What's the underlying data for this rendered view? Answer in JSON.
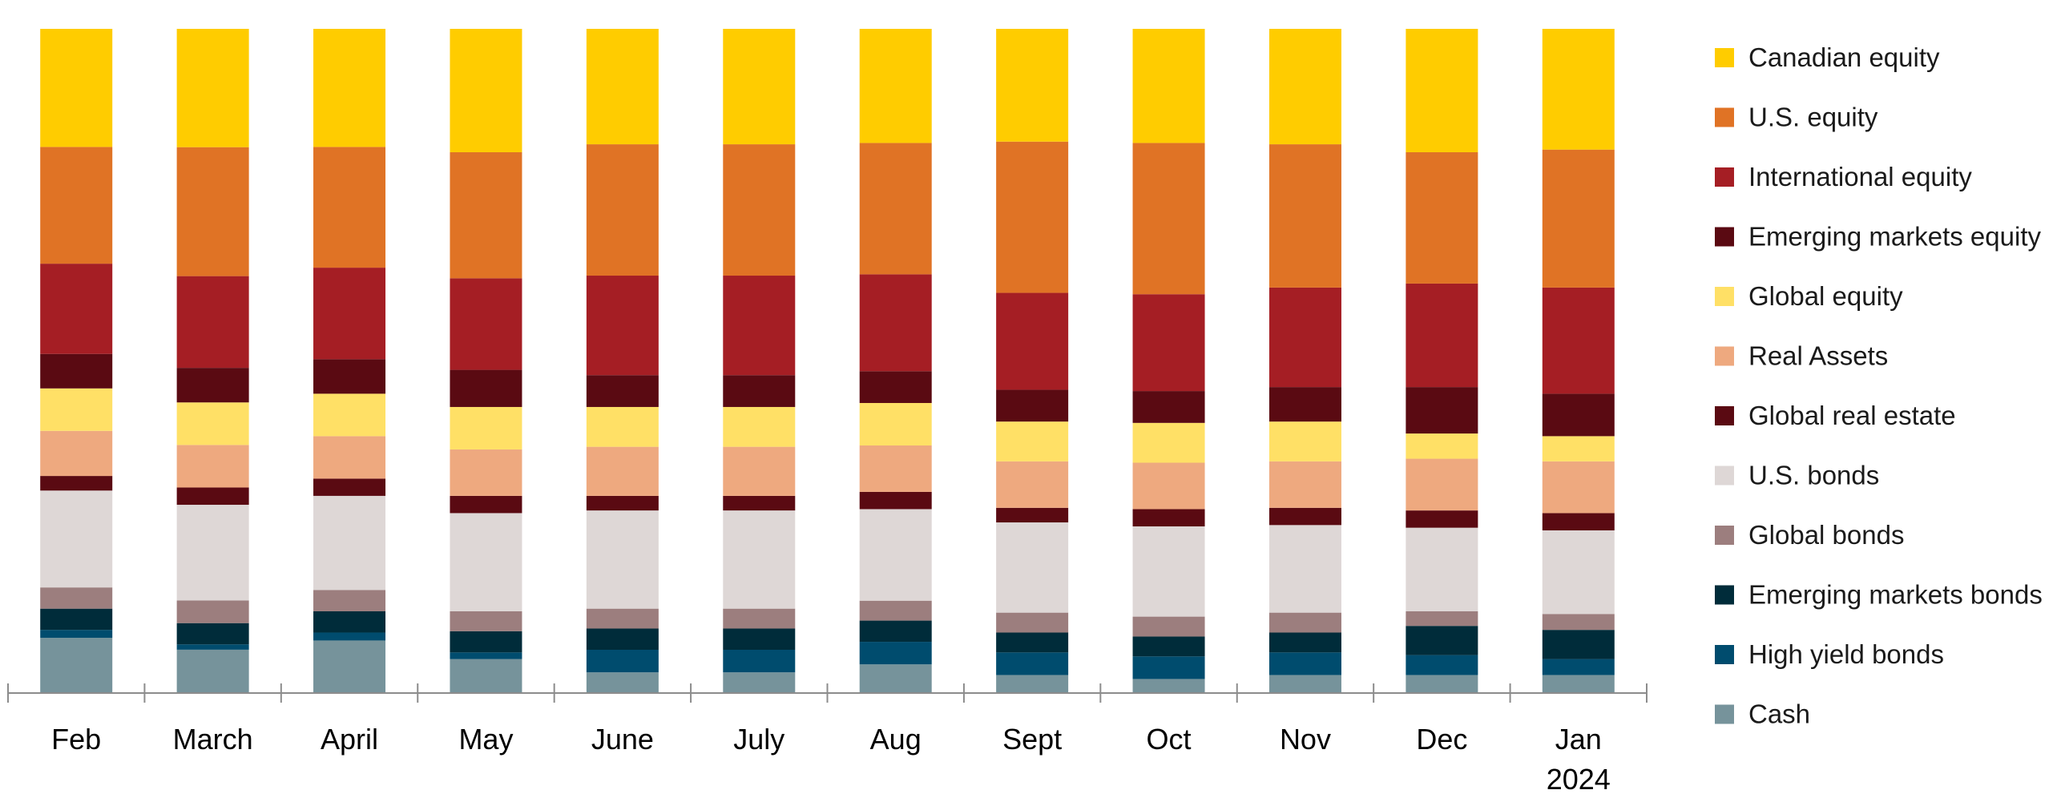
{
  "chart_data": {
    "type": "bar",
    "stacked": true,
    "normalized": true,
    "title": "",
    "xlabel": "",
    "ylabel": "",
    "ylim": [
      0,
      100
    ],
    "grid": false,
    "legend_position": "right",
    "categories": [
      "Feb",
      "March",
      "April",
      "May",
      "June",
      "July",
      "Aug",
      "Sept",
      "Oct",
      "Nov",
      "Dec",
      "Jan\n2024"
    ],
    "series": [
      {
        "name": "Cash",
        "color": "#76939B",
        "values": [
          8.2,
          6.4,
          7.8,
          5.0,
          3.0,
          3.0,
          4.2,
          2.6,
          2.0,
          2.6,
          2.6,
          2.6
        ]
      },
      {
        "name": "High yield bonds",
        "color": "#004C6E",
        "values": [
          1.2,
          0.8,
          1.2,
          1.0,
          3.4,
          3.4,
          3.4,
          3.4,
          3.4,
          3.4,
          3.0,
          2.4
        ]
      },
      {
        "name": "Emerging markets bonds",
        "color": "#002C3A",
        "values": [
          3.2,
          3.2,
          3.2,
          3.2,
          3.2,
          3.2,
          3.2,
          3.0,
          3.0,
          3.0,
          4.4,
          4.4
        ]
      },
      {
        "name": "Global bonds",
        "color": "#9C7E7E",
        "values": [
          3.2,
          3.4,
          3.2,
          3.0,
          3.0,
          3.0,
          3.0,
          3.0,
          3.0,
          3.0,
          2.2,
          2.4
        ]
      },
      {
        "name": "U.S. bonds",
        "color": "#DED7D6",
        "values": [
          14.6,
          14.4,
          14.2,
          14.8,
          14.8,
          14.8,
          13.8,
          13.6,
          13.6,
          13.2,
          12.6,
          12.6
        ]
      },
      {
        "name": "Global real estate",
        "color": "#5A0A12",
        "values": [
          2.2,
          2.6,
          2.6,
          2.6,
          2.2,
          2.2,
          2.6,
          2.2,
          2.6,
          2.6,
          2.6,
          2.6
        ]
      },
      {
        "name": "Real Assets",
        "color": "#EEA97F",
        "values": [
          6.8,
          6.4,
          6.4,
          7.0,
          7.4,
          7.4,
          7.0,
          7.0,
          7.0,
          7.0,
          7.8,
          7.8
        ]
      },
      {
        "name": "Global equity",
        "color": "#FFE066",
        "values": [
          6.4,
          6.4,
          6.4,
          6.4,
          6.0,
          6.0,
          6.4,
          6.0,
          6.0,
          6.0,
          3.8,
          3.8
        ]
      },
      {
        "name": "Emerging markets equity",
        "color": "#5A0A12",
        "values": [
          5.2,
          5.2,
          5.2,
          5.6,
          4.8,
          4.8,
          4.8,
          4.8,
          4.8,
          5.2,
          7.0,
          6.4
        ]
      },
      {
        "name": "International equity",
        "color": "#A51E24",
        "values": [
          13.6,
          13.8,
          13.8,
          13.8,
          15.0,
          15.0,
          14.6,
          14.6,
          14.6,
          15.0,
          15.6,
          16.0
        ]
      },
      {
        "name": "U.S. equity",
        "color": "#E07325",
        "values": [
          17.6,
          19.4,
          18.2,
          19.0,
          19.8,
          19.8,
          19.8,
          22.8,
          22.8,
          21.6,
          19.8,
          20.8
        ]
      },
      {
        "name": "Canadian equity",
        "color": "#FFCC00",
        "values": [
          17.8,
          17.8,
          17.8,
          18.6,
          17.4,
          17.4,
          17.2,
          17.0,
          17.2,
          17.4,
          18.6,
          18.2
        ]
      }
    ]
  },
  "legend_items": [
    {
      "label": "Canadian equity",
      "color": "#FFCC00",
      "icon": "legend-swatch-icon"
    },
    {
      "label": "U.S. equity",
      "color": "#E07325",
      "icon": "legend-swatch-icon"
    },
    {
      "label": "International equity",
      "color": "#A51E24",
      "icon": "legend-swatch-icon"
    },
    {
      "label": "Emerging markets equity",
      "color": "#5A0A12",
      "icon": "legend-swatch-icon"
    },
    {
      "label": "Global equity",
      "color": "#FFE066",
      "icon": "legend-swatch-icon"
    },
    {
      "label": "Real Assets",
      "color": "#EEA97F",
      "icon": "legend-swatch-icon"
    },
    {
      "label": "Global real estate",
      "color": "#5A0A12",
      "icon": "legend-swatch-icon"
    },
    {
      "label": "U.S. bonds",
      "color": "#DED7D6",
      "icon": "legend-swatch-icon"
    },
    {
      "label": "Global bonds",
      "color": "#9C7E7E",
      "icon": "legend-swatch-icon"
    },
    {
      "label": "Emerging markets bonds",
      "color": "#002C3A",
      "icon": "legend-swatch-icon"
    },
    {
      "label": "High yield bonds",
      "color": "#004C6E",
      "icon": "legend-swatch-icon"
    },
    {
      "label": "Cash",
      "color": "#76939B",
      "icon": "legend-swatch-icon"
    }
  ],
  "axis_color": "#8C8C8C"
}
